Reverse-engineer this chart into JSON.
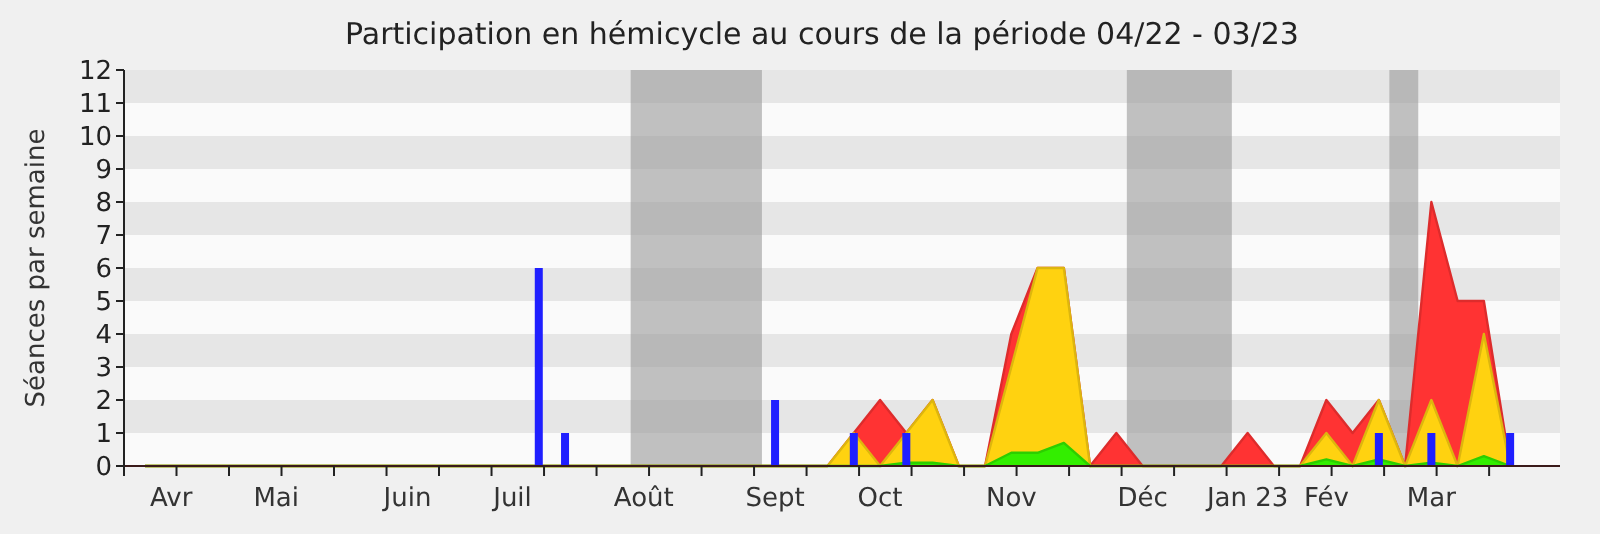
{
  "chart_data": {
    "type": "area",
    "title": "Participation en hémicycle au cours de la période 04/22 - 03/23",
    "ylabel": "Séances par semaine",
    "categories": [
      null,
      "Avr",
      null,
      null,
      null,
      "Mai",
      null,
      null,
      null,
      null,
      "Juin",
      null,
      null,
      null,
      "Juil",
      null,
      null,
      null,
      null,
      "Août",
      null,
      null,
      null,
      null,
      "Sept",
      null,
      null,
      null,
      "Oct",
      null,
      null,
      null,
      null,
      "Nov",
      null,
      null,
      null,
      null,
      "Déc",
      null,
      null,
      null,
      "Jan 23",
      null,
      null,
      "Fév",
      null,
      null,
      null,
      "Mar",
      null,
      null,
      null
    ],
    "ylim": [
      0,
      12
    ],
    "yticks": [
      0,
      1,
      2,
      3,
      4,
      5,
      6,
      7,
      8,
      9,
      10,
      11,
      12
    ],
    "series": [
      {
        "color": "#ff3333",
        "values": [
          0,
          0,
          0,
          0,
          0,
          0,
          0,
          0,
          0,
          0,
          0,
          0,
          0,
          0,
          0,
          0,
          0,
          0,
          0,
          0,
          0,
          0,
          0,
          0,
          0,
          0,
          0,
          1,
          2,
          1,
          2,
          0,
          0,
          4,
          6,
          6,
          0,
          1,
          0,
          0,
          0,
          0,
          1,
          0,
          0,
          2,
          1,
          2,
          0,
          8,
          5,
          5,
          0
        ]
      },
      {
        "color": "#ffd210",
        "values": [
          0,
          0,
          0,
          0,
          0,
          0,
          0,
          0,
          0,
          0,
          0,
          0,
          0,
          0,
          0,
          0,
          0,
          0,
          0,
          0,
          0,
          0,
          0,
          0,
          0,
          0,
          0,
          1,
          0,
          1,
          2,
          0,
          0,
          3,
          6,
          6,
          0,
          0,
          0,
          0,
          0,
          0,
          0,
          0,
          0,
          1,
          0,
          2,
          0,
          2,
          0,
          4,
          0
        ]
      },
      {
        "color": "#33ee00",
        "values": [
          0,
          0,
          0,
          0,
          0,
          0,
          0,
          0,
          0,
          0,
          0,
          0,
          0,
          0,
          0,
          0,
          0,
          0,
          0,
          0,
          0,
          0,
          0,
          0,
          0,
          0,
          0,
          0,
          0,
          0.1,
          0.1,
          0,
          0,
          0.4,
          0.4,
          0.7,
          0,
          0,
          0,
          0,
          0,
          0,
          0,
          0,
          0,
          0.2,
          0,
          0.2,
          0,
          0.1,
          0,
          0.3,
          0
        ]
      },
      {
        "type": "bar",
        "color": "#1f1fff",
        "values": [
          null,
          null,
          null,
          null,
          null,
          null,
          null,
          null,
          null,
          null,
          null,
          null,
          null,
          null,
          null,
          6,
          1,
          null,
          null,
          null,
          null,
          null,
          null,
          null,
          2,
          null,
          null,
          1,
          null,
          1,
          null,
          null,
          null,
          null,
          null,
          null,
          null,
          null,
          null,
          null,
          null,
          null,
          null,
          null,
          null,
          null,
          null,
          1,
          null,
          1,
          null,
          null,
          1
        ]
      }
    ]
  }
}
